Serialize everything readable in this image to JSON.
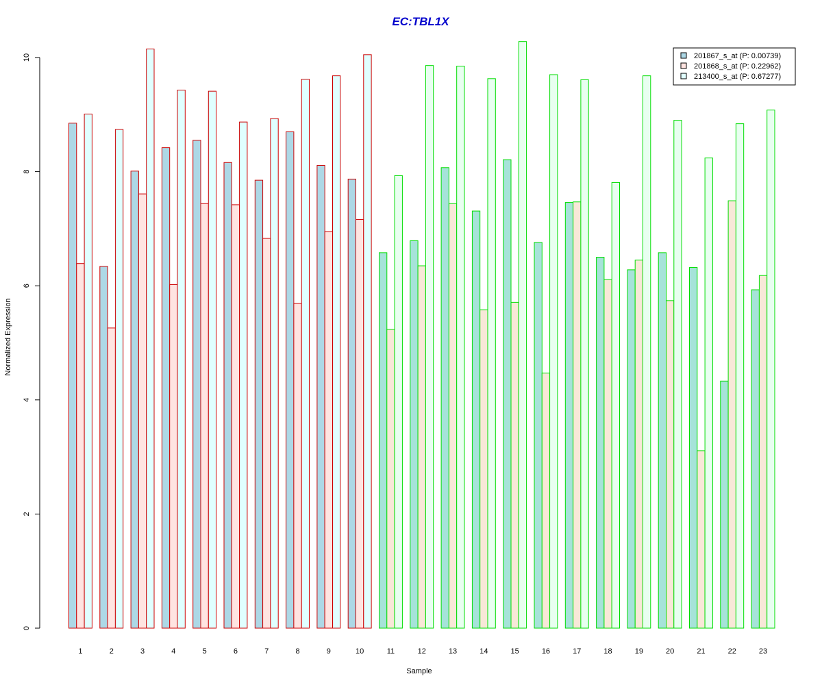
{
  "colors": {
    "title": "#0000cc",
    "group1_border": "#cc0000",
    "group2_border": "#00dd00",
    "group1_fills": [
      "#add8e6",
      "#ffe4e1",
      "#e0ffff"
    ],
    "group2_fills": [
      "#a6e3d9",
      "#f8e8d8",
      "#e8fff0"
    ]
  },
  "chart_data": {
    "type": "bar",
    "title": "EC:TBL1X",
    "xlabel": "Sample",
    "ylabel": "Normalized Expression",
    "ylim": [
      0,
      10.3
    ],
    "yticks": [
      0,
      2,
      4,
      6,
      8,
      10
    ],
    "categories": [
      "1",
      "2",
      "3",
      "4",
      "5",
      "6",
      "7",
      "8",
      "9",
      "10",
      "11",
      "12",
      "13",
      "14",
      "15",
      "16",
      "17",
      "18",
      "19",
      "20",
      "21",
      "22",
      "23"
    ],
    "groups": [
      {
        "samples": [
          "1",
          "2",
          "3",
          "4",
          "5",
          "6",
          "7",
          "8",
          "9",
          "10"
        ],
        "border_color": "#cc0000"
      },
      {
        "samples": [
          "11",
          "12",
          "13",
          "14",
          "15",
          "16",
          "17",
          "18",
          "19",
          "20",
          "21",
          "22",
          "23"
        ],
        "border_color": "#00dd00"
      }
    ],
    "series": [
      {
        "name": "201867_s_at (P: 0.00739)",
        "values": [
          8.85,
          6.34,
          8.01,
          8.42,
          8.55,
          8.16,
          7.85,
          8.7,
          8.11,
          7.87,
          6.58,
          6.79,
          8.07,
          7.31,
          8.21,
          6.76,
          7.46,
          6.5,
          6.28,
          6.58,
          6.32,
          4.33,
          5.93
        ]
      },
      {
        "name": "201868_s_at (P: 0.22962)",
        "values": [
          6.39,
          5.26,
          7.61,
          6.02,
          7.44,
          7.42,
          6.83,
          5.69,
          6.95,
          7.16,
          5.24,
          6.35,
          7.44,
          5.58,
          5.71,
          4.47,
          7.47,
          6.11,
          6.45,
          5.74,
          3.11,
          7.49,
          6.18
        ]
      },
      {
        "name": "213400_s_at (P: 0.67277)",
        "values": [
          9.01,
          8.74,
          10.15,
          9.43,
          9.41,
          8.87,
          8.93,
          9.62,
          9.68,
          10.05,
          7.93,
          9.86,
          9.85,
          9.63,
          10.28,
          9.7,
          9.61,
          7.81,
          9.68,
          8.9,
          8.24,
          8.84,
          9.08
        ]
      }
    ],
    "legend_position": "top-right",
    "grid": false
  }
}
